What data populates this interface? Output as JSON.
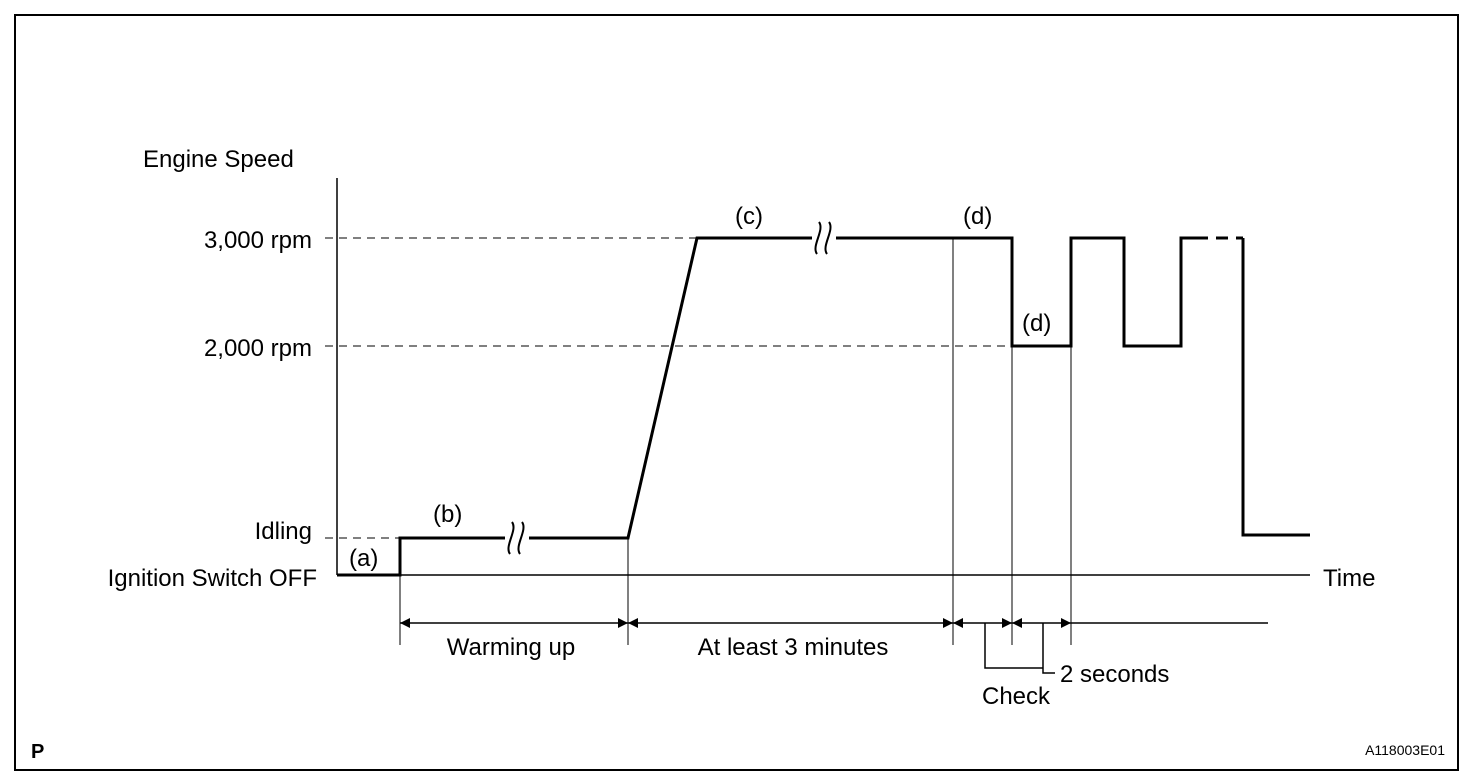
{
  "y_axis": {
    "title": "Engine Speed",
    "levels": [
      "3,000 rpm",
      "2,000 rpm",
      "Idling",
      "Ignition Switch OFF"
    ]
  },
  "x_axis": {
    "title": "Time"
  },
  "steps": {
    "a": "(a)",
    "b": "(b)",
    "c": "(c)",
    "d1": "(d)",
    "d2": "(d)"
  },
  "intervals": {
    "warming_up": "Warming up",
    "at_least_3_minutes": "At least 3 minutes",
    "two_seconds": "2 seconds",
    "check": "Check"
  },
  "corner": {
    "page_mark": "P",
    "figure_id": "A118003E01"
  }
}
